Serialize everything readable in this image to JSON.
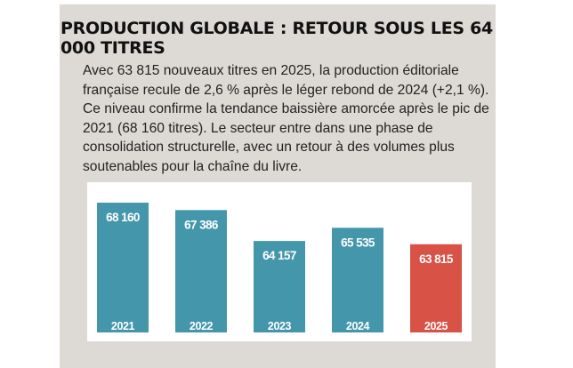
{
  "title": "PRODUCTION GLOBALE : RETOUR SOUS LES 64 000 TITRES",
  "body": "Avec 63 815 nouveaux titres en 2025, la production éditoriale française recule de 2,6 % après le léger rebond de 2024 (+2,1 %). Ce niveau confirme la tendance baissière amorcée après le pic de 2021 (68 160 titres). Le secteur entre dans une phase de consolidation structurelle, avec un retour à des volumes plus soutenables pour la chaîne du livre.",
  "colors": {
    "bar": "#4496ab",
    "highlight": "#d85245",
    "panel": "#dddad5"
  },
  "chart_data": {
    "type": "bar",
    "title": "",
    "xlabel": "",
    "ylabel": "",
    "categories": [
      "2021",
      "2022",
      "2023",
      "2024",
      "2025"
    ],
    "values": [
      68160,
      67386,
      64157,
      65535,
      63815
    ],
    "value_labels": [
      "68 160",
      "67 386",
      "64 157",
      "65 535",
      "63 815"
    ],
    "highlight_category": "2025",
    "ylim": [
      54600,
      68160
    ],
    "grid": false,
    "legend": "none"
  }
}
